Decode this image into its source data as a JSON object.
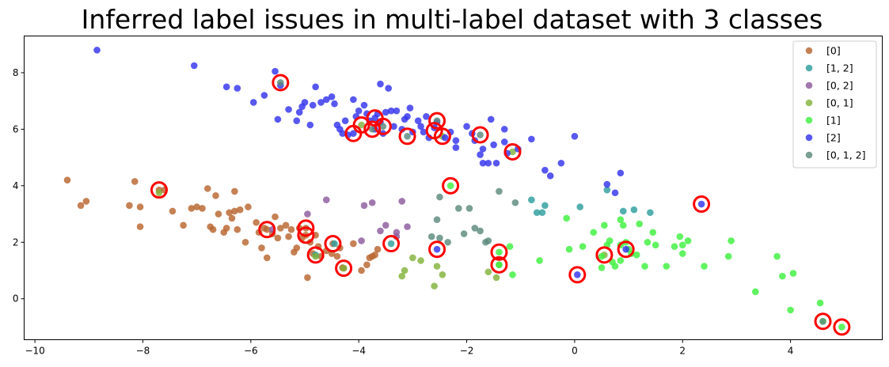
{
  "chart_data": {
    "type": "scatter",
    "title": "Inferred label issues in multi-label dataset with 3 classes",
    "xlabel": "",
    "ylabel": "",
    "xlim": [
      -10.2,
      5.7
    ],
    "ylim": [
      -1.45,
      9.3
    ],
    "xticks": [
      -10,
      -8,
      -6,
      -4,
      -2,
      0,
      2,
      4
    ],
    "yticks": [
      0,
      2,
      4,
      6,
      8
    ],
    "grid": false,
    "legend_position": "top-right",
    "issue_marker": {
      "color": "#ff0000"
    },
    "series": [
      {
        "name": "[0]",
        "color": "#b8652e",
        "points": [
          [
            -9.4,
            4.2
          ],
          [
            -9.15,
            3.3
          ],
          [
            -9.05,
            3.45
          ],
          [
            -8.15,
            4.15
          ],
          [
            -8.25,
            3.3
          ],
          [
            -8.05,
            3.25
          ],
          [
            -8.05,
            2.55
          ],
          [
            -7.6,
            3.85
          ],
          [
            -7.45,
            3.1
          ],
          [
            -7.25,
            2.6
          ],
          [
            -7.1,
            3.2
          ],
          [
            -7.0,
            3.25
          ],
          [
            -6.9,
            3.2
          ],
          [
            -6.8,
            3.9
          ],
          [
            -6.75,
            2.55
          ],
          [
            -6.7,
            2.45
          ],
          [
            -6.65,
            3.65
          ],
          [
            -6.6,
            3.0
          ],
          [
            -6.5,
            2.35
          ],
          [
            -6.45,
            2.5
          ],
          [
            -6.4,
            3.05
          ],
          [
            -6.35,
            2.85
          ],
          [
            -6.3,
            3.1
          ],
          [
            -6.3,
            3.8
          ],
          [
            -6.25,
            2.45
          ],
          [
            -6.2,
            3.15
          ],
          [
            -6.1,
            2.0
          ],
          [
            -6.05,
            3.25
          ],
          [
            -5.9,
            2.7
          ],
          [
            -5.85,
            2.35
          ],
          [
            -5.8,
            1.8
          ],
          [
            -5.75,
            2.5
          ],
          [
            -5.7,
            1.45
          ],
          [
            -5.6,
            2.3
          ],
          [
            -5.55,
            2.9
          ],
          [
            -5.5,
            2.15
          ],
          [
            -5.45,
            2.5
          ],
          [
            -5.35,
            2.6
          ],
          [
            -5.3,
            2.2
          ],
          [
            -5.25,
            2.45
          ],
          [
            -5.2,
            1.65
          ],
          [
            -5.15,
            1.8
          ],
          [
            -5.1,
            2.5
          ],
          [
            -5.05,
            2.15
          ],
          [
            -4.95,
            0.75
          ],
          [
            -4.9,
            2.0
          ],
          [
            -4.85,
            1.6
          ],
          [
            -4.8,
            2.25
          ],
          [
            -4.75,
            1.85
          ],
          [
            -4.7,
            1.5
          ],
          [
            -4.6,
            1.7
          ],
          [
            -4.5,
            1.6
          ],
          [
            -4.4,
            1.5
          ],
          [
            -4.35,
            1.8
          ],
          [
            -4.3,
            1.1
          ],
          [
            -4.1,
            1.95
          ],
          [
            -3.95,
            1.0
          ],
          [
            -3.8,
            1.45
          ],
          [
            -3.75,
            1.5
          ],
          [
            -3.7,
            1.55
          ],
          [
            -3.65,
            1.75
          ],
          [
            -3.85,
            1.2
          ],
          [
            -7.7,
            3.85
          ],
          [
            -5.7,
            2.45
          ],
          [
            -4.98,
            2.5
          ],
          [
            -4.98,
            2.25
          ],
          [
            -4.48,
            1.95
          ],
          [
            -4.28,
            1.08
          ]
        ]
      },
      {
        "name": "[1, 2]",
        "color": "#2e9e9e",
        "points": [
          [
            -0.8,
            3.5
          ],
          [
            -0.7,
            3.05
          ],
          [
            -0.6,
            3.05
          ],
          [
            -0.55,
            3.3
          ],
          [
            0.1,
            3.25
          ],
          [
            0.6,
            3.85
          ],
          [
            0.9,
            3.1
          ],
          [
            1.1,
            3.15
          ],
          [
            1.4,
            3.05
          ],
          [
            -3.4,
            1.95
          ],
          [
            -4.8,
            1.55
          ],
          [
            -4.45,
            1.95
          ]
        ]
      },
      {
        "name": "[0, 2]",
        "color": "#8c5a9c",
        "points": [
          [
            -4.6,
            3.5
          ],
          [
            -3.9,
            3.3
          ],
          [
            -3.75,
            3.4
          ],
          [
            -3.5,
            2.6
          ],
          [
            -3.2,
            3.45
          ],
          [
            -3.1,
            2.55
          ],
          [
            -3.3,
            2.35
          ],
          [
            -3.95,
            2.05
          ],
          [
            -3.6,
            2.4
          ],
          [
            -4.95,
            3.0
          ],
          [
            -5.6,
            2.45
          ],
          [
            -3.3,
            2.2
          ]
        ]
      },
      {
        "name": "[0, 1]",
        "color": "#82b23a",
        "points": [
          [
            -7.7,
            3.75
          ],
          [
            -3.0,
            1.45
          ],
          [
            -3.15,
            1.0
          ],
          [
            -3.2,
            0.8
          ],
          [
            -2.85,
            1.35
          ],
          [
            -2.6,
            0.45
          ],
          [
            -2.55,
            1.15
          ],
          [
            -2.45,
            0.85
          ],
          [
            -1.6,
            0.95
          ],
          [
            -1.45,
            0.75
          ],
          [
            -1.4,
            1.2
          ],
          [
            -3.95,
            6.15
          ],
          [
            -4.8,
            1.5
          ],
          [
            -4.28,
            1.08
          ],
          [
            -2.45,
            5.75
          ],
          [
            -1.15,
            5.2
          ],
          [
            0.55,
            1.55
          ]
        ]
      },
      {
        "name": "[1]",
        "color": "#3ef03e",
        "points": [
          [
            -2.3,
            4.0
          ],
          [
            -1.2,
            1.85
          ],
          [
            -1.15,
            0.85
          ],
          [
            -0.65,
            1.35
          ],
          [
            -0.15,
            2.85
          ],
          [
            -0.1,
            1.75
          ],
          [
            0.15,
            1.85
          ],
          [
            0.35,
            2.35
          ],
          [
            0.5,
            1.5
          ],
          [
            0.5,
            1.1
          ],
          [
            0.55,
            2.6
          ],
          [
            0.6,
            1.9
          ],
          [
            0.65,
            2.05
          ],
          [
            0.7,
            1.3
          ],
          [
            0.75,
            1.15
          ],
          [
            0.85,
            2.8
          ],
          [
            0.85,
            1.9
          ],
          [
            0.85,
            1.35
          ],
          [
            0.9,
            2.6
          ],
          [
            0.95,
            2.0
          ],
          [
            1.0,
            1.75
          ],
          [
            1.05,
            1.6
          ],
          [
            1.15,
            1.55
          ],
          [
            1.2,
            2.65
          ],
          [
            1.3,
            1.15
          ],
          [
            1.35,
            2.0
          ],
          [
            1.45,
            2.35
          ],
          [
            1.5,
            1.9
          ],
          [
            1.7,
            1.15
          ],
          [
            1.85,
            1.85
          ],
          [
            1.95,
            2.2
          ],
          [
            2.0,
            1.9
          ],
          [
            2.0,
            1.6
          ],
          [
            2.1,
            2.05
          ],
          [
            2.4,
            1.15
          ],
          [
            2.85,
            1.5
          ],
          [
            2.9,
            2.05
          ],
          [
            3.35,
            0.25
          ],
          [
            3.75,
            1.5
          ],
          [
            3.85,
            0.8
          ],
          [
            4.0,
            -0.4
          ],
          [
            4.05,
            0.9
          ],
          [
            4.55,
            -0.15
          ],
          [
            4.6,
            -0.8
          ],
          [
            4.95,
            -1.0
          ],
          [
            -1.4,
            1.65
          ],
          [
            -1.4,
            1.2
          ]
        ]
      },
      {
        "name": "[2]",
        "color": "#3333ee",
        "points": [
          [
            -8.85,
            8.8
          ],
          [
            -7.05,
            8.25
          ],
          [
            -6.45,
            7.5
          ],
          [
            -6.25,
            7.45
          ],
          [
            -5.95,
            6.95
          ],
          [
            -5.75,
            7.2
          ],
          [
            -5.55,
            8.05
          ],
          [
            -5.5,
            6.35
          ],
          [
            -5.45,
            7.55
          ],
          [
            -5.3,
            6.7
          ],
          [
            -5.15,
            6.3
          ],
          [
            -5.1,
            6.6
          ],
          [
            -5.05,
            6.8
          ],
          [
            -5.0,
            6.95
          ],
          [
            -4.9,
            6.15
          ],
          [
            -4.85,
            6.85
          ],
          [
            -4.8,
            7.5
          ],
          [
            -4.7,
            6.95
          ],
          [
            -4.6,
            7.05
          ],
          [
            -4.5,
            7.15
          ],
          [
            -4.45,
            6.9
          ],
          [
            -4.4,
            6.15
          ],
          [
            -4.35,
            6.0
          ],
          [
            -4.3,
            5.85
          ],
          [
            -4.25,
            6.3
          ],
          [
            -4.2,
            5.8
          ],
          [
            -4.1,
            7.05
          ],
          [
            -4.05,
            6.45
          ],
          [
            -4.0,
            6.65
          ],
          [
            -3.9,
            6.85
          ],
          [
            -3.85,
            6.55
          ],
          [
            -3.8,
            6.3
          ],
          [
            -3.7,
            6.0
          ],
          [
            -3.65,
            6.55
          ],
          [
            -3.6,
            6.25
          ],
          [
            -3.55,
            5.85
          ],
          [
            -3.5,
            6.6
          ],
          [
            -3.45,
            7.45
          ],
          [
            -3.4,
            6.65
          ],
          [
            -3.35,
            6.1
          ],
          [
            -3.3,
            6.65
          ],
          [
            -3.2,
            6.0
          ],
          [
            -3.15,
            6.35
          ],
          [
            -3.1,
            6.45
          ],
          [
            -3.05,
            6.75
          ],
          [
            -3.0,
            5.9
          ],
          [
            -2.9,
            6.3
          ],
          [
            -2.85,
            6.1
          ],
          [
            -2.8,
            5.9
          ],
          [
            -2.75,
            6.45
          ],
          [
            -2.7,
            5.7
          ],
          [
            -2.6,
            6.05
          ],
          [
            -2.55,
            6.25
          ],
          [
            -2.4,
            5.7
          ],
          [
            -2.3,
            5.9
          ],
          [
            -2.2,
            5.35
          ],
          [
            -2.2,
            5.6
          ],
          [
            -2.0,
            6.1
          ],
          [
            -1.9,
            5.85
          ],
          [
            -1.85,
            5.6
          ],
          [
            -1.75,
            5.1
          ],
          [
            -1.7,
            5.3
          ],
          [
            -1.7,
            4.8
          ],
          [
            -1.6,
            4.8
          ],
          [
            -1.55,
            6.35
          ],
          [
            -1.5,
            5.45
          ],
          [
            -1.45,
            4.8
          ],
          [
            -1.3,
            5.55
          ],
          [
            -1.25,
            5.15
          ],
          [
            -1.05,
            5.3
          ],
          [
            -0.8,
            5.65
          ],
          [
            -0.55,
            4.55
          ],
          [
            -0.45,
            4.35
          ],
          [
            -0.25,
            4.8
          ],
          [
            0.0,
            5.75
          ],
          [
            0.6,
            4.05
          ],
          [
            0.75,
            3.75
          ],
          [
            0.85,
            4.45
          ],
          [
            -1.3,
            6.0
          ],
          [
            -3.6,
            7.6
          ],
          [
            -3.7,
            6.4
          ],
          [
            -2.55,
            1.75
          ],
          [
            0.05,
            0.85
          ],
          [
            0.95,
            1.75
          ],
          [
            2.35,
            3.35
          ],
          [
            -4.1,
            5.85
          ]
        ]
      },
      {
        "name": "[0, 1, 2]",
        "color": "#5c8a7c",
        "points": [
          [
            -2.5,
            3.6
          ],
          [
            -2.55,
            2.8
          ],
          [
            -2.35,
            2.0
          ],
          [
            -2.15,
            3.2
          ],
          [
            -2.05,
            2.3
          ],
          [
            -1.95,
            3.2
          ],
          [
            -1.85,
            2.5
          ],
          [
            -1.75,
            2.4
          ],
          [
            -1.65,
            2.0
          ],
          [
            -1.6,
            2.05
          ],
          [
            -1.4,
            3.8
          ],
          [
            -1.1,
            3.4
          ],
          [
            -2.65,
            2.2
          ],
          [
            -2.5,
            2.15
          ],
          [
            -5.45,
            7.65
          ],
          [
            -3.55,
            6.1
          ],
          [
            -1.75,
            5.8
          ],
          [
            -3.1,
            5.75
          ],
          [
            -2.55,
            6.3
          ],
          [
            -3.75,
            6.0
          ],
          [
            4.6,
            -0.8
          ]
        ]
      }
    ],
    "issues": [
      [
        -5.45,
        7.65
      ],
      [
        -4.1,
        5.85
      ],
      [
        -3.95,
        6.15
      ],
      [
        -3.7,
        6.4
      ],
      [
        -3.75,
        6.0
      ],
      [
        -3.55,
        6.1
      ],
      [
        -3.1,
        5.75
      ],
      [
        -2.55,
        6.3
      ],
      [
        -2.6,
        5.95
      ],
      [
        -2.45,
        5.75
      ],
      [
        -1.75,
        5.8
      ],
      [
        -1.15,
        5.2
      ],
      [
        -2.3,
        4.0
      ],
      [
        2.35,
        3.35
      ],
      [
        -7.7,
        3.85
      ],
      [
        -5.7,
        2.45
      ],
      [
        -4.98,
        2.5
      ],
      [
        -4.98,
        2.25
      ],
      [
        -4.48,
        1.95
      ],
      [
        -4.8,
        1.55
      ],
      [
        -4.28,
        1.08
      ],
      [
        -3.4,
        1.95
      ],
      [
        -2.55,
        1.75
      ],
      [
        -1.4,
        1.65
      ],
      [
        -1.4,
        1.2
      ],
      [
        0.05,
        0.85
      ],
      [
        0.55,
        1.55
      ],
      [
        0.95,
        1.75
      ],
      [
        4.6,
        -0.8
      ],
      [
        4.95,
        -1.0
      ]
    ]
  }
}
